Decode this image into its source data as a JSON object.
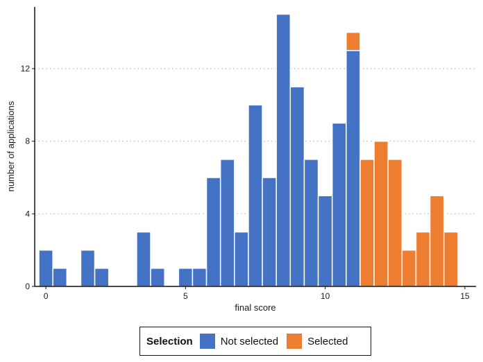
{
  "chart_data": {
    "type": "bar",
    "subtype": "stacked histogram",
    "xlabel": "final score",
    "ylabel": "number of applications",
    "xlim": [
      -0.4,
      15.4
    ],
    "ylim": [
      0,
      15.4
    ],
    "xticks": [
      0,
      5,
      10,
      15
    ],
    "yticks": [
      0,
      4,
      8,
      12
    ],
    "grid": "horizontal dotted",
    "bin_width": 0.5,
    "bin_centers": [
      0,
      0.5,
      1,
      1.5,
      2,
      2.5,
      3,
      3.5,
      4,
      4.5,
      5,
      5.5,
      6,
      6.5,
      7,
      7.5,
      8,
      8.5,
      9,
      9.5,
      10,
      10.5,
      11,
      11.5,
      12,
      12.5,
      13,
      13.5,
      14,
      14.5
    ],
    "legend": {
      "title": "Selection",
      "position": "bottom"
    },
    "series": [
      {
        "name": "Not selected",
        "color": "#4472C4",
        "values": [
          2,
          1,
          0,
          2,
          1,
          0,
          0,
          3,
          1,
          0,
          1,
          1,
          6,
          7,
          3,
          10,
          6,
          15,
          11,
          7,
          5,
          9,
          13,
          0,
          0,
          0,
          0,
          0,
          0,
          0
        ]
      },
      {
        "name": "Selected",
        "color": "#ED7D31",
        "values": [
          0,
          0,
          0,
          0,
          0,
          0,
          0,
          0,
          0,
          0,
          0,
          0,
          0,
          0,
          0,
          0,
          0,
          0,
          0,
          0,
          0,
          0,
          1,
          7,
          8,
          7,
          2,
          3,
          5,
          3
        ]
      }
    ]
  }
}
